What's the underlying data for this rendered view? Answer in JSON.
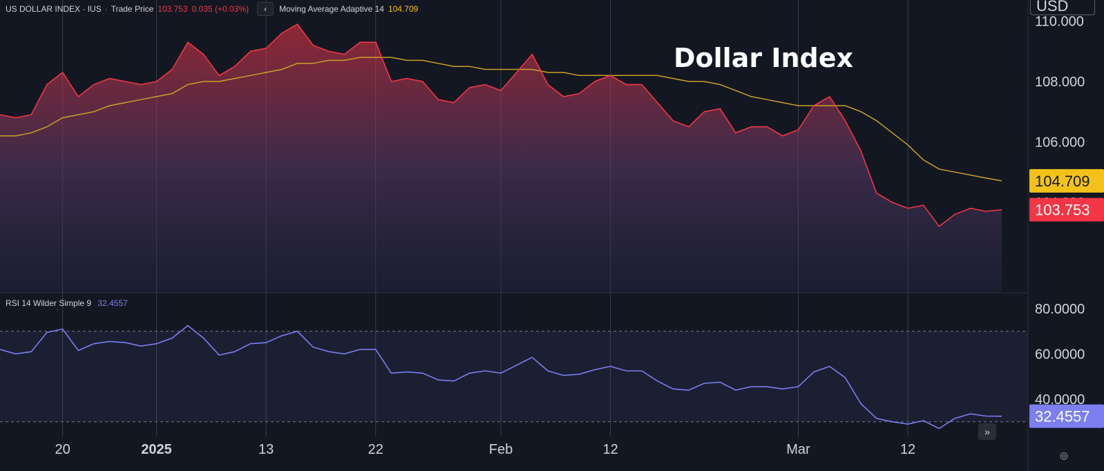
{
  "legend": {
    "symbol": "US DOLLAR INDEX · IUS",
    "price_type": "Trade Price",
    "last": "103.753",
    "change": "0.035 (+0.03%)",
    "collapse_icon": "chevron-left-icon",
    "ma_label": "Moving Average Adaptive 14",
    "ma_value": "104.709"
  },
  "rsi_legend": {
    "label": "RSI 14 Wilder Simple 9",
    "value": "32.4557"
  },
  "currency": "USD",
  "colors": {
    "price": "#f23645",
    "ma": "#c9a227",
    "rsi": "#7b7ff0",
    "background": "#131722",
    "ma_badge": "#f2c21a"
  },
  "chart_data": [
    {
      "type": "area",
      "title": "Dollar Index",
      "x_tick_labels": [
        "20",
        "2025",
        "13",
        "22",
        "Feb",
        "12",
        "Mar",
        "12"
      ],
      "x_tick_index": [
        4,
        10,
        17,
        24,
        32,
        39,
        51,
        58
      ],
      "y_tick_labels": [
        "110.000",
        "108.000",
        "106.000",
        "104.000"
      ],
      "y_ticks": [
        110,
        108,
        106,
        104
      ],
      "ylim": [
        101.0,
        110.7
      ],
      "series": [
        {
          "name": "Trade Price",
          "values": [
            106.9,
            106.8,
            106.9,
            107.9,
            108.3,
            107.5,
            107.9,
            108.1,
            108.0,
            107.9,
            108.0,
            108.4,
            109.3,
            108.9,
            108.2,
            108.5,
            109.0,
            109.1,
            109.6,
            109.9,
            109.2,
            109.0,
            108.9,
            109.3,
            109.3,
            108.0,
            108.1,
            108.0,
            107.4,
            107.3,
            107.8,
            107.9,
            107.7,
            108.3,
            108.9,
            107.9,
            107.5,
            107.6,
            108.0,
            108.2,
            107.9,
            107.9,
            107.3,
            106.7,
            106.5,
            107.0,
            107.1,
            106.3,
            106.5,
            106.5,
            106.2,
            106.4,
            107.2,
            107.5,
            106.7,
            105.7,
            104.3,
            104.0,
            103.8,
            103.9,
            103.2,
            103.6,
            103.8,
            103.7,
            103.753
          ]
        },
        {
          "name": "Moving Average Adaptive 14",
          "values": [
            106.2,
            106.2,
            106.3,
            106.5,
            106.8,
            106.9,
            107.0,
            107.2,
            107.3,
            107.4,
            107.5,
            107.6,
            107.9,
            108.0,
            108.0,
            108.1,
            108.2,
            108.3,
            108.4,
            108.6,
            108.6,
            108.7,
            108.7,
            108.8,
            108.8,
            108.8,
            108.7,
            108.7,
            108.6,
            108.5,
            108.5,
            108.4,
            108.4,
            108.4,
            108.4,
            108.3,
            108.3,
            108.2,
            108.2,
            108.2,
            108.2,
            108.2,
            108.2,
            108.1,
            108.0,
            108.0,
            107.9,
            107.7,
            107.5,
            107.4,
            107.3,
            107.2,
            107.2,
            107.2,
            107.2,
            107.0,
            106.7,
            106.3,
            105.9,
            105.4,
            105.1,
            105.0,
            104.9,
            104.8,
            104.709
          ]
        }
      ],
      "last_labels": {
        "ma": "104.709",
        "price": "103.753",
        "hidden_tick": "104.000"
      }
    },
    {
      "type": "line",
      "y_tick_labels": [
        "80.0000",
        "60.0000",
        "40.0000"
      ],
      "y_ticks": [
        80,
        60,
        40
      ],
      "ylim": [
        23.5,
        87.0
      ],
      "bands": [
        70,
        30
      ],
      "series": [
        {
          "name": "RSI 14 Wilder Simple 9",
          "values": [
            62.0,
            60.0,
            61.0,
            69.5,
            71.0,
            61.5,
            64.5,
            65.5,
            65.0,
            63.5,
            64.5,
            67.0,
            72.5,
            67.0,
            59.5,
            61.0,
            64.5,
            65.0,
            68.0,
            70.0,
            63.0,
            61.0,
            60.0,
            62.0,
            62.0,
            51.5,
            52.0,
            51.5,
            48.5,
            48.0,
            51.5,
            52.5,
            51.5,
            55.0,
            58.5,
            52.5,
            50.5,
            51.0,
            53.0,
            54.5,
            52.5,
            52.5,
            48.0,
            44.5,
            44.0,
            47.0,
            47.5,
            44.0,
            45.5,
            45.5,
            44.5,
            45.5,
            52.0,
            54.5,
            49.5,
            38.0,
            31.5,
            30.0,
            29.0,
            30.5,
            27.0,
            31.5,
            33.5,
            32.5,
            32.4557
          ]
        }
      ],
      "last_label": "32.4557"
    }
  ]
}
